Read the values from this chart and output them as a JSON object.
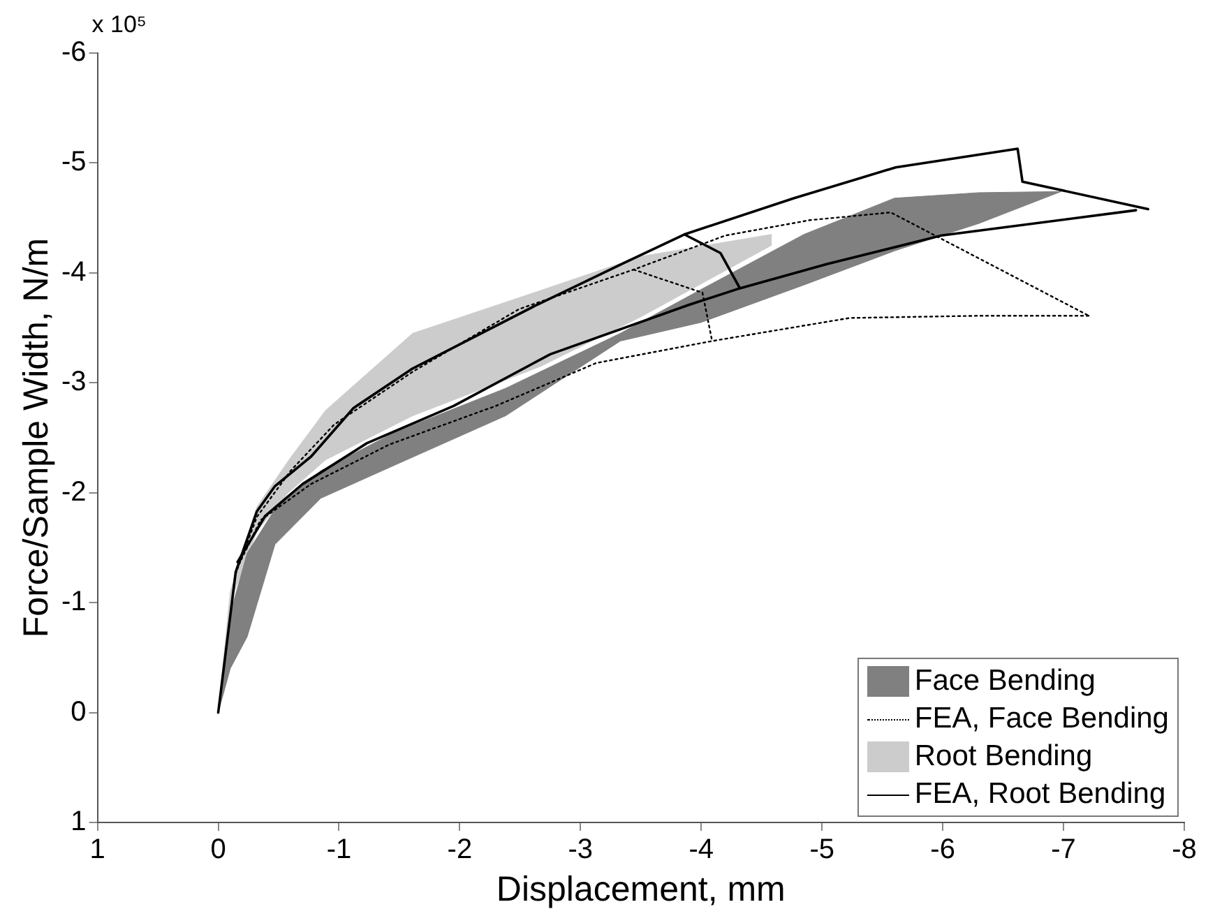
{
  "chart_data": {
    "type": "line",
    "xlabel": "Displacement, mm",
    "ylabel": "Force/Sample Width, N/m",
    "annotations": [
      "x 10⁵"
    ],
    "xlim": [
      1,
      -8
    ],
    "xticks": [
      1,
      0,
      -1,
      -2,
      -3,
      -4,
      -5,
      -6,
      -7,
      -8
    ],
    "ylim": [
      1,
      -6
    ],
    "yticks": [
      1,
      0,
      -1,
      -2,
      -3,
      -4,
      -5,
      -6
    ],
    "legend": "bottom right",
    "series": [
      {
        "name": "Face Bending",
        "type": "line",
        "color": "#808080",
        "x": [
          0,
          -0.1,
          -0.24,
          -0.47,
          -0.85,
          -1.46,
          -2.38,
          -3.33,
          -4.0,
          -4.85,
          -5.6,
          -6.3,
          -6.98
        ],
        "values": [
          null,
          null,
          null,
          null,
          null,
          null,
          null,
          null,
          null,
          null,
          null,
          null,
          null
        ],
        "upper": [
          0,
          -0.9,
          -1.45,
          -1.85,
          -2.2,
          -2.55,
          -2.95,
          -3.45,
          -3.85,
          -4.35,
          -4.68,
          -4.73,
          -4.74
        ],
        "lower": [
          0,
          -0.4,
          -0.69,
          -1.53,
          -1.95,
          -2.25,
          -2.7,
          -3.38,
          -3.55,
          -3.89,
          -4.2,
          -4.45,
          -4.74
        ]
      },
      {
        "name": "FEA, Face Bending",
        "type": "line",
        "color": "#000000",
        "line_style": "dotted",
        "x": [
          0,
          -0.14,
          -0.32,
          -0.6,
          -0.96,
          -1.61,
          -2.49,
          -3.44,
          -4.2,
          -4.9,
          -5.57,
          -7.21
        ],
        "values": [
          0,
          -1.25,
          -1.78,
          -2.2,
          -2.62,
          -3.1,
          -3.67,
          -4.03,
          -4.34,
          -4.48,
          -4.55,
          -3.61
        ]
      },
      {
        "type": "line",
        "color": "#000000",
        "line_style": "dotted",
        "x": [
          -0.15,
          -0.35,
          -0.77,
          -1.42,
          -2.3,
          -3.13,
          -4.09,
          -5.23,
          -6.3,
          -7.21
        ],
        "values": [
          -1.3,
          -1.75,
          -2.08,
          -2.44,
          -2.79,
          -3.18,
          -3.38,
          -3.59,
          -3.61,
          -3.61
        ]
      },
      {
        "type": "line",
        "color": "#000000",
        "line_style": "dotted",
        "x": [
          -3.44,
          -4.01,
          -4.09
        ],
        "values": [
          -4.03,
          -3.82,
          -3.38
        ]
      },
      {
        "name": "Root Bending",
        "type": "line",
        "color": "#cccccc",
        "x": [
          0,
          -0.1,
          -0.32,
          -0.58,
          -0.89,
          -1.61,
          -2.67,
          -3.5,
          -4.58
        ],
        "values": [
          null,
          null,
          null,
          null,
          null,
          null,
          null,
          null,
          null
        ],
        "upper": [
          0,
          -1.1,
          -1.87,
          -2.29,
          -2.75,
          -3.45,
          -3.84,
          -4.15,
          -4.35
        ],
        "lower": [
          0,
          -1.0,
          -1.65,
          -2.0,
          -2.3,
          -2.7,
          -3.15,
          -3.6,
          -4.25
        ]
      },
      {
        "name": "FEA, Root Bending",
        "type": "line",
        "color": "#000000",
        "line_style": "solid",
        "x": [
          0,
          -0.145,
          -0.32,
          -0.47,
          -0.77,
          -1.12,
          -1.61,
          -2.64,
          -3.36,
          -3.86,
          -4.77,
          -5.61,
          -6.62,
          -6.66,
          -7.7
        ],
        "values": [
          0,
          -1.28,
          -1.83,
          -2.06,
          -2.33,
          -2.77,
          -3.13,
          -3.71,
          -4.09,
          -4.35,
          -4.68,
          -4.96,
          -5.13,
          -4.83,
          -4.58
        ]
      },
      {
        "type": "line",
        "color": "#000000",
        "line_style": "solid",
        "x": [
          -0.16,
          -0.39,
          -0.7,
          -1.23,
          -1.95,
          -2.75,
          -3.9,
          -4.32,
          -5.04,
          -5.99,
          -7.6
        ],
        "values": [
          -1.37,
          -1.79,
          -2.08,
          -2.45,
          -2.79,
          -3.26,
          -3.71,
          -3.86,
          -4.08,
          -4.34,
          -4.57
        ]
      },
      {
        "type": "line",
        "color": "#000000",
        "line_style": "solid",
        "x": [
          -3.86,
          -4.16,
          -4.32
        ],
        "values": [
          -4.35,
          -4.18,
          -3.86
        ]
      }
    ]
  }
}
